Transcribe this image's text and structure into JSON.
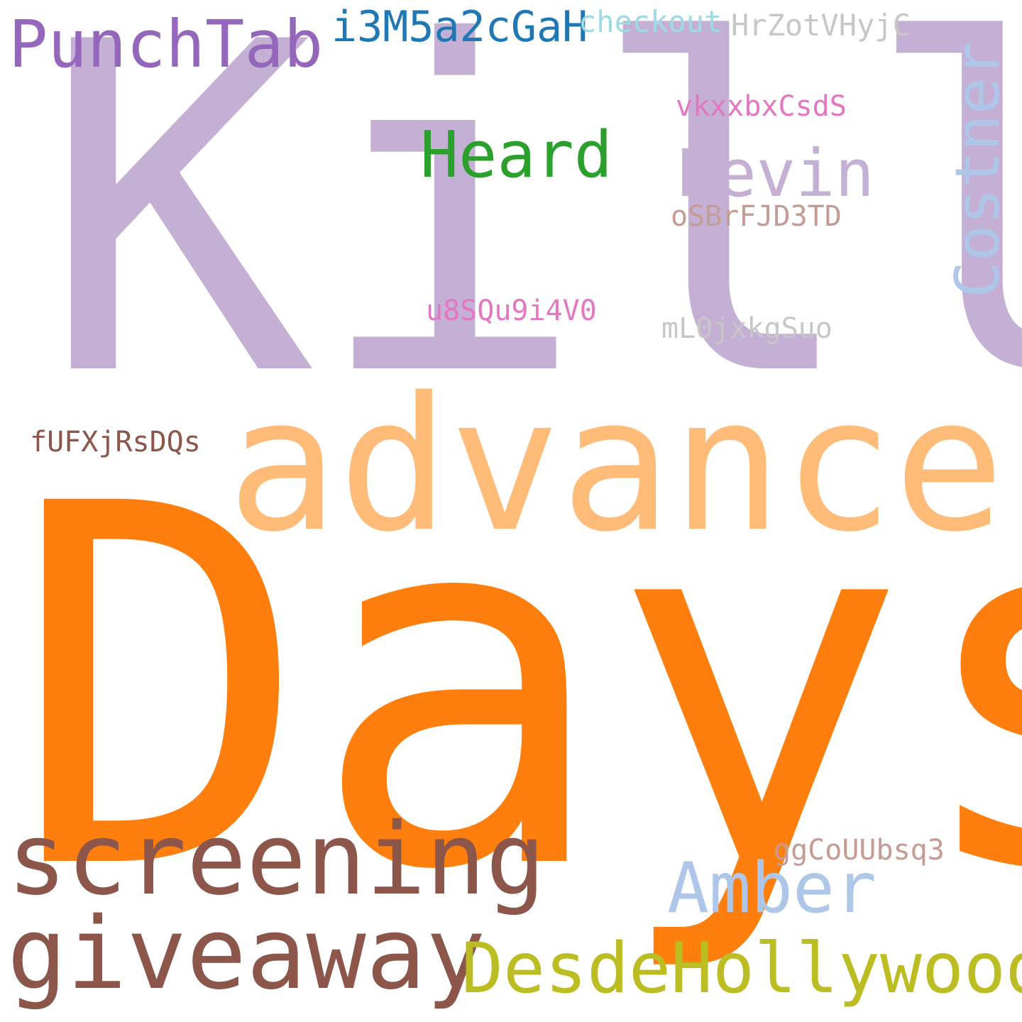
{
  "words": [
    {
      "id": "kill",
      "text": "Kill",
      "color": "#c5b0d5",
      "rotated": false
    },
    {
      "id": "days",
      "text": "Days",
      "color": "#ff7f0e",
      "rotated": false
    },
    {
      "id": "advance",
      "text": "advance",
      "color": "#ffbb78",
      "rotated": false
    },
    {
      "id": "screening",
      "text": "screening",
      "color": "#8c564b",
      "rotated": false
    },
    {
      "id": "giveaway",
      "text": "giveaway",
      "color": "#8c564b",
      "rotated": false
    },
    {
      "id": "desdehollywood",
      "text": "DesdeHollywood",
      "color": "#bcbd22",
      "rotated": false
    },
    {
      "id": "amber",
      "text": "Amber",
      "color": "#aec7e8",
      "rotated": false
    },
    {
      "id": "punchtab",
      "text": "PunchTab",
      "color": "#9467bd",
      "rotated": false
    },
    {
      "id": "i3m5a2cgah",
      "text": "i3M5a2cGaH",
      "color": "#1f77b4",
      "rotated": false
    },
    {
      "id": "checkout",
      "text": "checkout",
      "color": "#9edae5",
      "rotated": false
    },
    {
      "id": "hrzotvhyjc",
      "text": "HrZotVHyjC",
      "color": "#c7c7c7",
      "rotated": false
    },
    {
      "id": "heard",
      "text": "Heard",
      "color": "#2ca02c",
      "rotated": false
    },
    {
      "id": "kevin",
      "text": "Kevin",
      "color": "#c5b0d5",
      "rotated": false
    },
    {
      "id": "costner",
      "text": "Costner",
      "color": "#aec7e8",
      "rotated": true
    },
    {
      "id": "vkxxbxcsds",
      "text": "vkxxbxCsdS",
      "color": "#e377c2",
      "rotated": false
    },
    {
      "id": "osbrfjd3td",
      "text": "oSBrFJD3TD",
      "color": "#c49c94",
      "rotated": false
    },
    {
      "id": "u8squ9i4v0",
      "text": "u8SQu9i4V0",
      "color": "#e377c2",
      "rotated": false
    },
    {
      "id": "ml0jxkgsuo",
      "text": "mL0jxkgSuo",
      "color": "#c7c7c7",
      "rotated": false
    },
    {
      "id": "fufxjrsdqs",
      "text": "fUFXjRsDQs",
      "color": "#8c564b",
      "rotated": false
    },
    {
      "id": "ggcouubsq3",
      "text": "ggCoUUbsq3",
      "color": "#c49c94",
      "rotated": false
    }
  ]
}
